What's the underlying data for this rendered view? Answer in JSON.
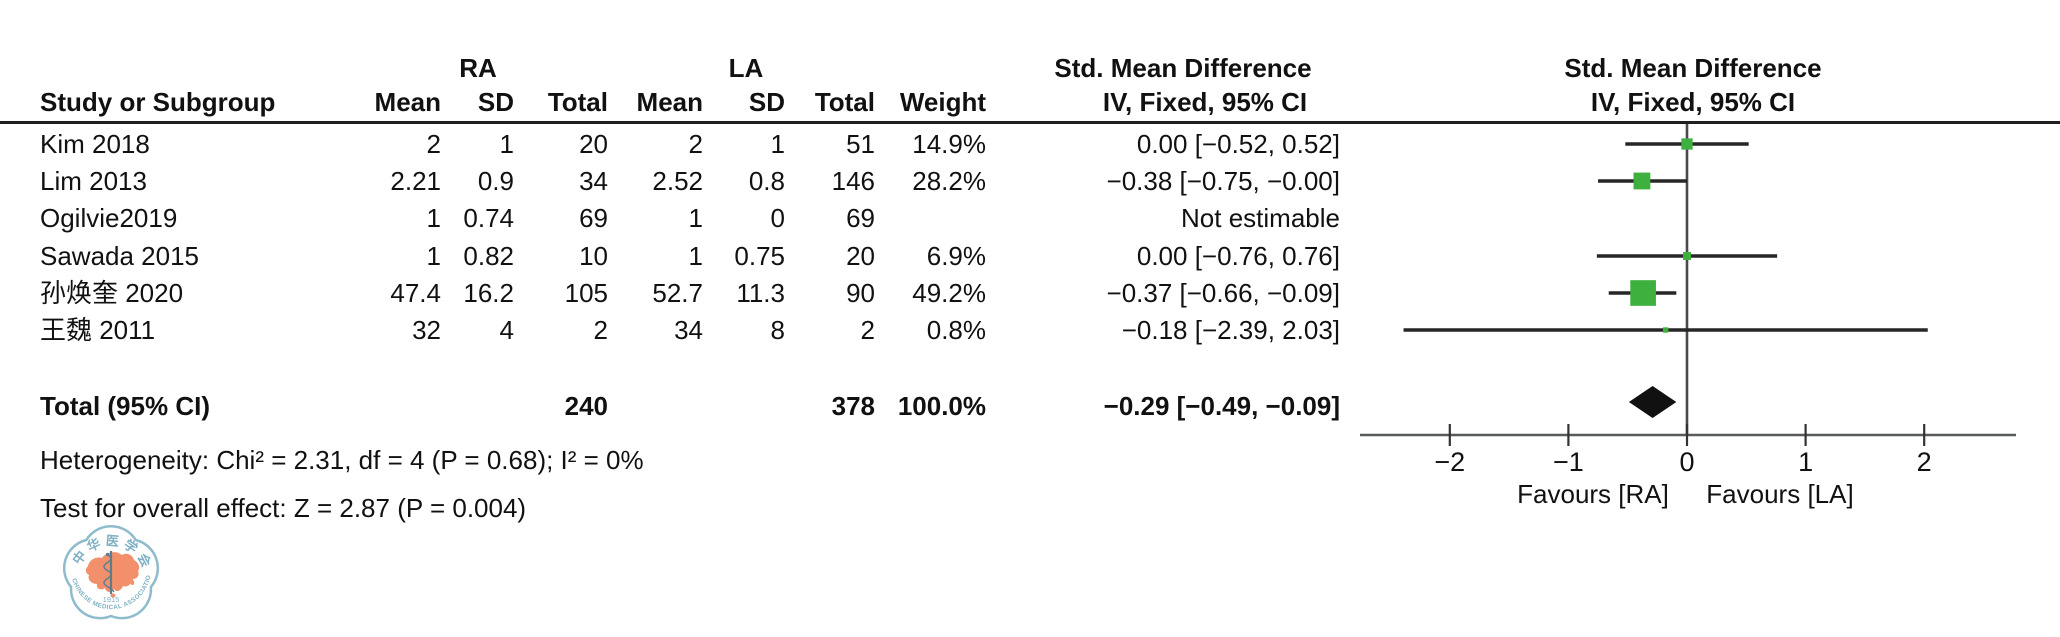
{
  "table": {
    "group_left_label": "RA",
    "group_right_label": "LA",
    "effect_header": "Std. Mean Difference",
    "method_header": "IV, Fixed, 95% CI",
    "col_headers": {
      "study": "Study or Subgroup",
      "mean": "Mean",
      "sd": "SD",
      "total": "Total",
      "weight": "Weight"
    },
    "rows": [
      {
        "study": "Kim 2018",
        "mean_ra": "2",
        "sd_ra": "1",
        "total_ra": "20",
        "mean_la": "2",
        "sd_la": "1",
        "total_la": "51",
        "weight": "14.9%",
        "ci": "0.00 [−0.52, 0.52]"
      },
      {
        "study": "Lim 2013",
        "mean_ra": "2.21",
        "sd_ra": "0.9",
        "total_ra": "34",
        "mean_la": "2.52",
        "sd_la": "0.8",
        "total_la": "146",
        "weight": "28.2%",
        "ci": "−0.38 [−0.75, −0.00]"
      },
      {
        "study": "Ogilvie2019",
        "mean_ra": "1",
        "sd_ra": "0.74",
        "total_ra": "69",
        "mean_la": "1",
        "sd_la": "0",
        "total_la": "69",
        "weight": "",
        "ci": "Not estimable"
      },
      {
        "study": "Sawada 2015",
        "mean_ra": "1",
        "sd_ra": "0.82",
        "total_ra": "10",
        "mean_la": "1",
        "sd_la": "0.75",
        "total_la": "20",
        "weight": "6.9%",
        "ci": "0.00 [−0.76, 0.76]"
      },
      {
        "study": "孙焕奎 2020",
        "mean_ra": "47.4",
        "sd_ra": "16.2",
        "total_ra": "105",
        "mean_la": "52.7",
        "sd_la": "11.3",
        "total_la": "90",
        "weight": "49.2%",
        "ci": "−0.37 [−0.66, −0.09]"
      },
      {
        "study": "王魏 2011",
        "mean_ra": "32",
        "sd_ra": "4",
        "total_ra": "2",
        "mean_la": "34",
        "sd_la": "8",
        "total_la": "2",
        "weight": "0.8%",
        "ci": "−0.18 [−2.39, 2.03]"
      }
    ],
    "total_row": {
      "label": "Total (95% CI)",
      "total_ra": "240",
      "total_la": "378",
      "weight": "100.0%",
      "ci": "−0.29 [−0.49, −0.09]"
    },
    "heterogeneity": "Heterogeneity: Chi² = 2.31, df = 4 (P = 0.68); I² = 0%",
    "overall_effect": "Test for overall effect: Z = 2.87 (P = 0.004)"
  },
  "plot": {
    "favours_left": "Favours [RA]",
    "favours_right": "Favours [LA]",
    "marker_color": "#3eb03e",
    "ci_line_color": "#262626",
    "diamond_color": "#111111",
    "axis_color": "#57595b"
  },
  "chart_data": {
    "type": "scatter",
    "subtype": "forest-plot",
    "title": "Std. Mean Difference — IV, Fixed, 95% CI",
    "x_ticks": [
      -2,
      -1,
      0,
      1,
      2
    ],
    "xlim": [
      -2.75,
      2.75
    ],
    "grid": false,
    "studies": [
      {
        "name": "Kim 2018",
        "smd": 0.0,
        "ci_low": -0.52,
        "ci_high": 0.52,
        "weight_pct": 14.9,
        "estimable": true
      },
      {
        "name": "Lim 2013",
        "smd": -0.38,
        "ci_low": -0.75,
        "ci_high": 0.0,
        "weight_pct": 28.2,
        "estimable": true
      },
      {
        "name": "Ogilvie2019",
        "smd": null,
        "ci_low": null,
        "ci_high": null,
        "weight_pct": null,
        "estimable": false
      },
      {
        "name": "Sawada 2015",
        "smd": 0.0,
        "ci_low": -0.76,
        "ci_high": 0.76,
        "weight_pct": 6.9,
        "estimable": true
      },
      {
        "name": "孙焕奎 2020",
        "smd": -0.37,
        "ci_low": -0.66,
        "ci_high": -0.09,
        "weight_pct": 49.2,
        "estimable": true
      },
      {
        "name": "王魏 2011",
        "smd": -0.18,
        "ci_low": -2.39,
        "ci_high": 2.03,
        "weight_pct": 0.8,
        "estimable": true
      }
    ],
    "total": {
      "smd": -0.29,
      "ci_low": -0.49,
      "ci_high": -0.09
    }
  },
  "logo": {
    "org_cn": "中华医学会",
    "org_en": "CHINESE MEDICAL ASSOCIATION",
    "year": "1915",
    "ring_color": "#8fbccd",
    "text_color": "#7fb0c4",
    "map_color": "#f2906c",
    "staff_color": "#5c7d8e"
  }
}
